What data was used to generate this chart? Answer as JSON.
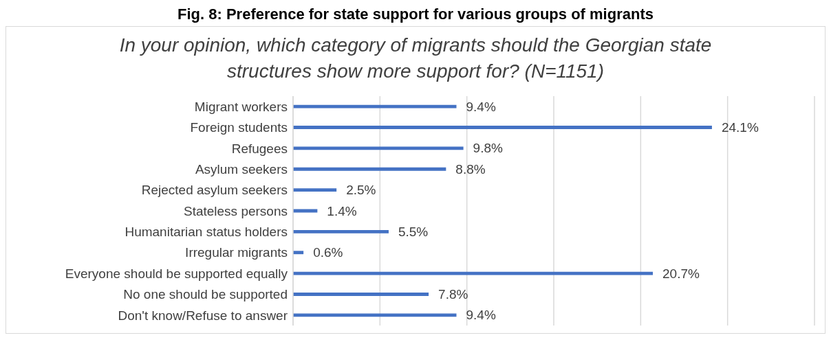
{
  "chart_data": {
    "type": "bar",
    "orientation": "horizontal",
    "title": "Fig. 8: Preference for state support for various groups of migrants",
    "subtitle": "In your opinion, which category of migrants should the Georgian state structures show more support for?  (N=1151)",
    "categories": [
      "Migrant workers",
      "Foreign students",
      "Refugees",
      "Asylum seekers",
      "Rejected asylum seekers",
      "Stateless persons",
      "Humanitarian status holders",
      "Irregular migrants",
      "Everyone should be supported equally",
      "No one should be supported",
      "Don't know/Refuse to answer"
    ],
    "values": [
      9.4,
      24.1,
      9.8,
      8.8,
      2.5,
      1.4,
      5.5,
      0.6,
      20.7,
      7.8,
      9.4
    ],
    "value_labels": [
      "9.4%",
      "24.1%",
      "9.8%",
      "8.8%",
      "2.5%",
      "1.4%",
      "5.5%",
      "0.6%",
      "20.7%",
      "7.8%",
      "9.4%"
    ],
    "color": "#4472c4",
    "xlim": [
      0,
      30
    ],
    "xticks": [
      {
        "value": 0,
        "label": null
      },
      {
        "value": 5,
        "label": null
      },
      {
        "value": 10,
        "label": null
      },
      {
        "value": 15,
        "label": null
      },
      {
        "value": 20,
        "label": null
      },
      {
        "value": 25,
        "label": null
      },
      {
        "value": 30,
        "label": null
      }
    ],
    "tick_labels": "y",
    "grid": "x"
  }
}
